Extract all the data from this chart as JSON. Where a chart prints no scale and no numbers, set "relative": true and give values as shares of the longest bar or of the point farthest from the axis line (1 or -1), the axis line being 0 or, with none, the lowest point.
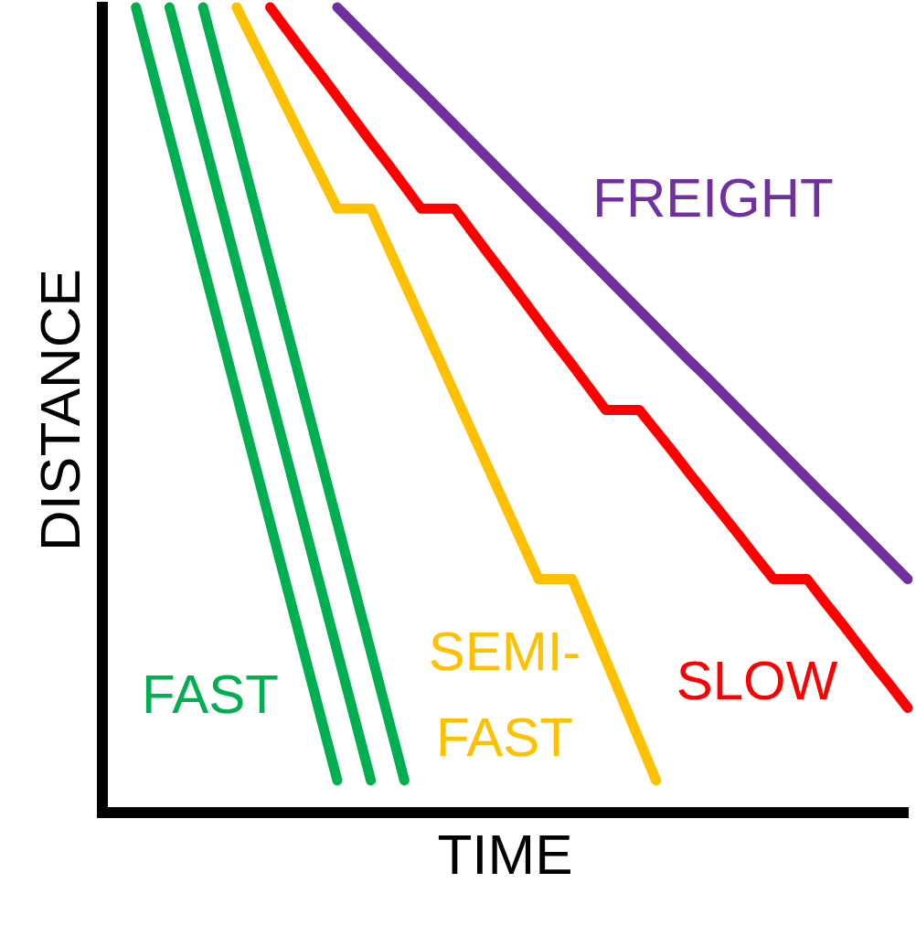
{
  "chart_data": {
    "type": "line",
    "xlabel": "TIME",
    "ylabel": "DISTANCE",
    "relative": true,
    "legend": false,
    "marker": "none",
    "line_style": "solid",
    "categories": [
      null,
      null,
      null,
      null,
      null,
      null,
      null,
      null,
      null,
      null,
      null,
      null,
      null,
      null,
      null,
      null,
      null,
      null,
      null,
      null,
      null,
      null,
      null,
      null,
      null,
      null,
      null,
      null,
      null,
      null,
      null,
      null,
      null,
      null,
      null,
      null,
      null,
      null,
      null,
      null,
      null,
      null,
      null,
      null,
      null,
      null,
      null,
      null,
      null
    ],
    "series": [
      {
        "name": "FAST",
        "color": "#00b050",
        "values": [
          null,
          null,
          1,
          0.92,
          0.84,
          0.76,
          0.68,
          0.6,
          0.52,
          0.44,
          0.36,
          0.28,
          0.2,
          0.12,
          0.04,
          null,
          null,
          null,
          null,
          null,
          null,
          null,
          null,
          null,
          null,
          null,
          null,
          null,
          null,
          null,
          null,
          null,
          null,
          null,
          null,
          null,
          null,
          null,
          null,
          null,
          null,
          null,
          null,
          null,
          null,
          null,
          null,
          null,
          null
        ]
      },
      {
        "color": "#00b050",
        "values": [
          null,
          null,
          null,
          null,
          1,
          0.92,
          0.84,
          0.76,
          0.68,
          0.6,
          0.52,
          0.44,
          0.36,
          0.28,
          0.2,
          0.12,
          0.04,
          null,
          null,
          null,
          null,
          null,
          null,
          null,
          null,
          null,
          null,
          null,
          null,
          null,
          null,
          null,
          null,
          null,
          null,
          null,
          null,
          null,
          null,
          null,
          null,
          null,
          null,
          null,
          null,
          null,
          null,
          null,
          null
        ]
      },
      {
        "color": "#00b050",
        "values": [
          null,
          null,
          null,
          null,
          null,
          null,
          1,
          0.92,
          0.84,
          0.76,
          0.68,
          0.6,
          0.52,
          0.44,
          0.36,
          0.28,
          0.2,
          0.12,
          0.04,
          null,
          null,
          null,
          null,
          null,
          null,
          null,
          null,
          null,
          null,
          null,
          null,
          null,
          null,
          null,
          null,
          null,
          null,
          null,
          null,
          null,
          null,
          null,
          null,
          null,
          null,
          null,
          null,
          null,
          null
        ]
      },
      {
        "name": "SEMI-FAST",
        "color": "#ffc000",
        "values": [
          null,
          null,
          null,
          null,
          null,
          null,
          null,
          null,
          1,
          0.958,
          0.917,
          0.875,
          0.833,
          0.792,
          0.75,
          0.75,
          0.75,
          0.704,
          0.658,
          0.612,
          0.566,
          0.52,
          0.474,
          0.428,
          0.382,
          0.336,
          0.29,
          0.29,
          0.29,
          0.24,
          0.19,
          0.14,
          0.09,
          0.04,
          null,
          null,
          null,
          null,
          null,
          null,
          null,
          null,
          null,
          null,
          null,
          null,
          null,
          null,
          null
        ]
      },
      {
        "name": "SLOW",
        "color": "#ff0000",
        "values": [
          null,
          null,
          null,
          null,
          null,
          null,
          null,
          null,
          null,
          null,
          1,
          0.972,
          0.944,
          0.917,
          0.889,
          0.861,
          0.833,
          0.806,
          0.778,
          0.75,
          0.75,
          0.75,
          0.722,
          0.694,
          0.667,
          0.639,
          0.611,
          0.583,
          0.556,
          0.528,
          0.5,
          0.5,
          0.5,
          0.474,
          0.448,
          0.421,
          0.395,
          0.369,
          0.343,
          0.316,
          0.29,
          0.29,
          0.29,
          0.263,
          0.237,
          0.21,
          0.183,
          0.157,
          0.13
        ]
      },
      {
        "name": "FREIGHT",
        "color": "#7030a0",
        "values": [
          null,
          null,
          null,
          null,
          null,
          null,
          null,
          null,
          null,
          null,
          null,
          null,
          null,
          null,
          1,
          0.979,
          0.958,
          0.937,
          0.916,
          0.896,
          0.875,
          0.854,
          0.833,
          0.812,
          0.791,
          0.77,
          0.749,
          0.729,
          0.708,
          0.687,
          0.666,
          0.645,
          0.624,
          0.603,
          0.582,
          0.561,
          0.541,
          0.52,
          0.499,
          0.478,
          0.457,
          0.436,
          0.415,
          0.394,
          0.374,
          0.353,
          0.332,
          0.311,
          0.29
        ]
      }
    ]
  }
}
